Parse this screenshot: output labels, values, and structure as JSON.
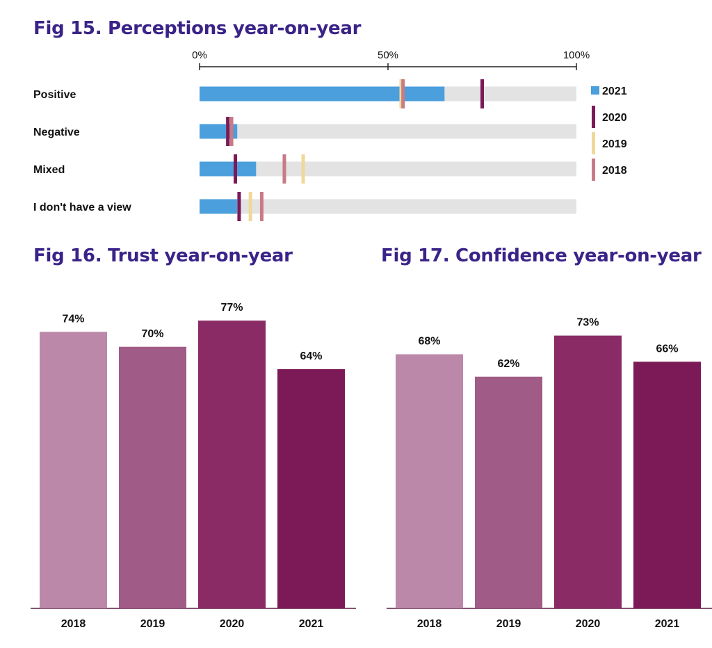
{
  "colors": {
    "title": "#3a2388",
    "track": "#e3e3e3",
    "s2021": "#4b9fdc",
    "s2020": "#7b1a58",
    "s2019": "#eed99a",
    "s2018": "#c87b86",
    "bar2018": "#bc88aa",
    "bar2019": "#a05b86",
    "bar2020": "#8b2b66",
    "bar2021": "#7b1a56"
  },
  "chart_data": [
    {
      "id": "fig15",
      "type": "bar",
      "orientation": "horizontal",
      "title": "Fig 15. Perceptions year-on-year",
      "xlim": [
        0,
        100
      ],
      "ticks": [
        "0%",
        "50%",
        "100%"
      ],
      "categories": [
        "Positive",
        "Negative",
        "Mixed",
        "I don't have a view"
      ],
      "series": [
        {
          "name": "2021",
          "style": "bar",
          "values": [
            65,
            10,
            15,
            10
          ]
        },
        {
          "name": "2020",
          "style": "marker",
          "values": [
            75,
            7.5,
            9.5,
            10.5
          ]
        },
        {
          "name": "2019",
          "style": "marker",
          "values": [
            53.5,
            7.5,
            27.5,
            13.5
          ]
        },
        {
          "name": "2018",
          "style": "marker",
          "values": [
            54,
            8.5,
            22.5,
            16.5
          ]
        }
      ],
      "legend": [
        "2021",
        "2020",
        "2019",
        "2018"
      ]
    },
    {
      "id": "fig16",
      "type": "bar",
      "title": "Fig 16. Trust year-on-year",
      "categories": [
        "2018",
        "2019",
        "2020",
        "2021"
      ],
      "values": [
        74,
        70,
        77,
        64
      ],
      "labels": [
        "74%",
        "70%",
        "77%",
        "64%"
      ],
      "ylim": [
        0,
        100
      ]
    },
    {
      "id": "fig17",
      "type": "bar",
      "title": "Fig 17. Confidence year-on-year",
      "categories": [
        "2018",
        "2019",
        "2020",
        "2021"
      ],
      "values": [
        68,
        62,
        73,
        66
      ],
      "labels": [
        "68%",
        "62%",
        "73%",
        "66%"
      ],
      "ylim": [
        0,
        100
      ]
    }
  ]
}
